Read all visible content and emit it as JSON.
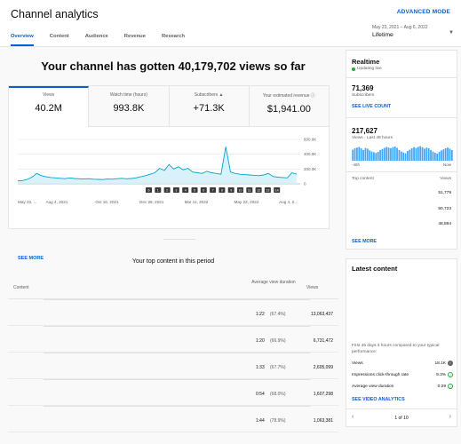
{
  "header": {
    "title": "Channel analytics",
    "advanced_mode": "ADVANCED MODE",
    "tabs": [
      "Overview",
      "Content",
      "Audience",
      "Revenue",
      "Research"
    ],
    "date_range": "May 23, 2021 – Aug 6, 2022",
    "date_label": "Lifetime"
  },
  "headline": "Your channel has gotten 40,179,702 views so far",
  "metrics": [
    {
      "label": "Views",
      "value": "40.2M"
    },
    {
      "label": "Watch time (hours)",
      "value": "993.8K"
    },
    {
      "label": "Subscribers",
      "value": "+71.3K"
    },
    {
      "label": "Your estimated revenue",
      "value": "$1,941.00"
    }
  ],
  "see_more": "SEE MORE",
  "chart_data": {
    "type": "line",
    "x_labels": [
      "May 23, ...",
      "Aug 4, 2021",
      "Oct 16, 2021",
      "Dec 28, 2021",
      "Mar 11, 2022",
      "May 23, 2022",
      "Aug 4, 2..."
    ],
    "y_labels": [
      "600.0K",
      "400.0K",
      "200.0K",
      "0"
    ],
    "ylim": [
      0,
      600000
    ],
    "series": [
      {
        "values": [
          40000,
          45000,
          60000,
          90000,
          140000,
          110000,
          95000,
          85000,
          80000,
          75000,
          70000,
          80000,
          72000,
          68000,
          65000,
          70000,
          62000,
          60000,
          58000,
          65000,
          62000,
          70000,
          75000,
          68000,
          72000,
          80000,
          95000,
          110000,
          130000,
          150000,
          210000,
          180000,
          260000,
          200000,
          230000,
          190000,
          210000,
          160000,
          150000,
          140000,
          170000,
          150000,
          140000,
          130000,
          500000,
          160000,
          140000,
          130000,
          125000,
          120000,
          115000,
          110000,
          120000,
          140000,
          100000,
          90000,
          85000,
          80000,
          150000,
          130000
        ]
      }
    ],
    "color": "#00a5d3",
    "markers": [
      "6",
      "1",
      "2",
      "3",
      "4",
      "5",
      "6",
      "7",
      "8",
      "9",
      "10",
      "11",
      "12",
      "13",
      "14"
    ]
  },
  "top_content": {
    "title": "Your top content in this period",
    "col_content": "Content",
    "col_avd": "Average view duration",
    "col_views": "Views",
    "rows": [
      {
        "duration": "1:22",
        "pct": "(67.4%)",
        "views": "13,063,437"
      },
      {
        "duration": "1:20",
        "pct": "(66.9%)",
        "views": "6,731,472"
      },
      {
        "duration": "1:33",
        "pct": "(67.7%)",
        "views": "2,605,099"
      },
      {
        "duration": "0:54",
        "pct": "(68.0%)",
        "views": "1,607,298"
      },
      {
        "duration": "1:44",
        "pct": "(78.9%)",
        "views": "1,063,381"
      }
    ]
  },
  "realtime": {
    "title": "Realtime",
    "updating": "Updating live",
    "subscribers": "71,369",
    "subscribers_label": "Subscribers",
    "see_live_count": "SEE LIVE COUNT",
    "views": "217,627",
    "views_label": "Views · Last 48 hours",
    "axis_left": "-48h",
    "axis_right": "Now",
    "top_content_label": "Top content",
    "top_content_views_label": "Views",
    "top_values": [
      "51,779",
      "50,723",
      "48,894"
    ],
    "see_more": "SEE MORE",
    "bars": [
      0.62,
      0.7,
      0.74,
      0.78,
      0.7,
      0.6,
      0.72,
      0.68,
      0.58,
      0.52,
      0.48,
      0.44,
      0.5,
      0.6,
      0.66,
      0.72,
      0.78,
      0.74,
      0.7,
      0.76,
      0.8,
      0.72,
      0.6,
      0.52,
      0.46,
      0.42,
      0.55,
      0.62,
      0.7,
      0.76,
      0.72,
      0.78,
      0.82,
      0.76,
      0.68,
      0.74,
      0.7,
      0.6,
      0.52,
      0.45,
      0.4,
      0.5,
      0.58,
      0.64,
      0.7,
      0.74,
      0.68,
      0.6
    ]
  },
  "latest": {
    "title": "Latest content",
    "note": "First 45 days 3 hours compared to your typical performance:",
    "rows": [
      {
        "label": "Views",
        "value": "18.1K"
      },
      {
        "label": "Impressions click-through rate",
        "value": "9.3%"
      },
      {
        "label": "Average view duration",
        "value": "0:29"
      }
    ],
    "see_video_analytics": "SEE VIDEO ANALYTICS",
    "pager": "1 of 10"
  }
}
